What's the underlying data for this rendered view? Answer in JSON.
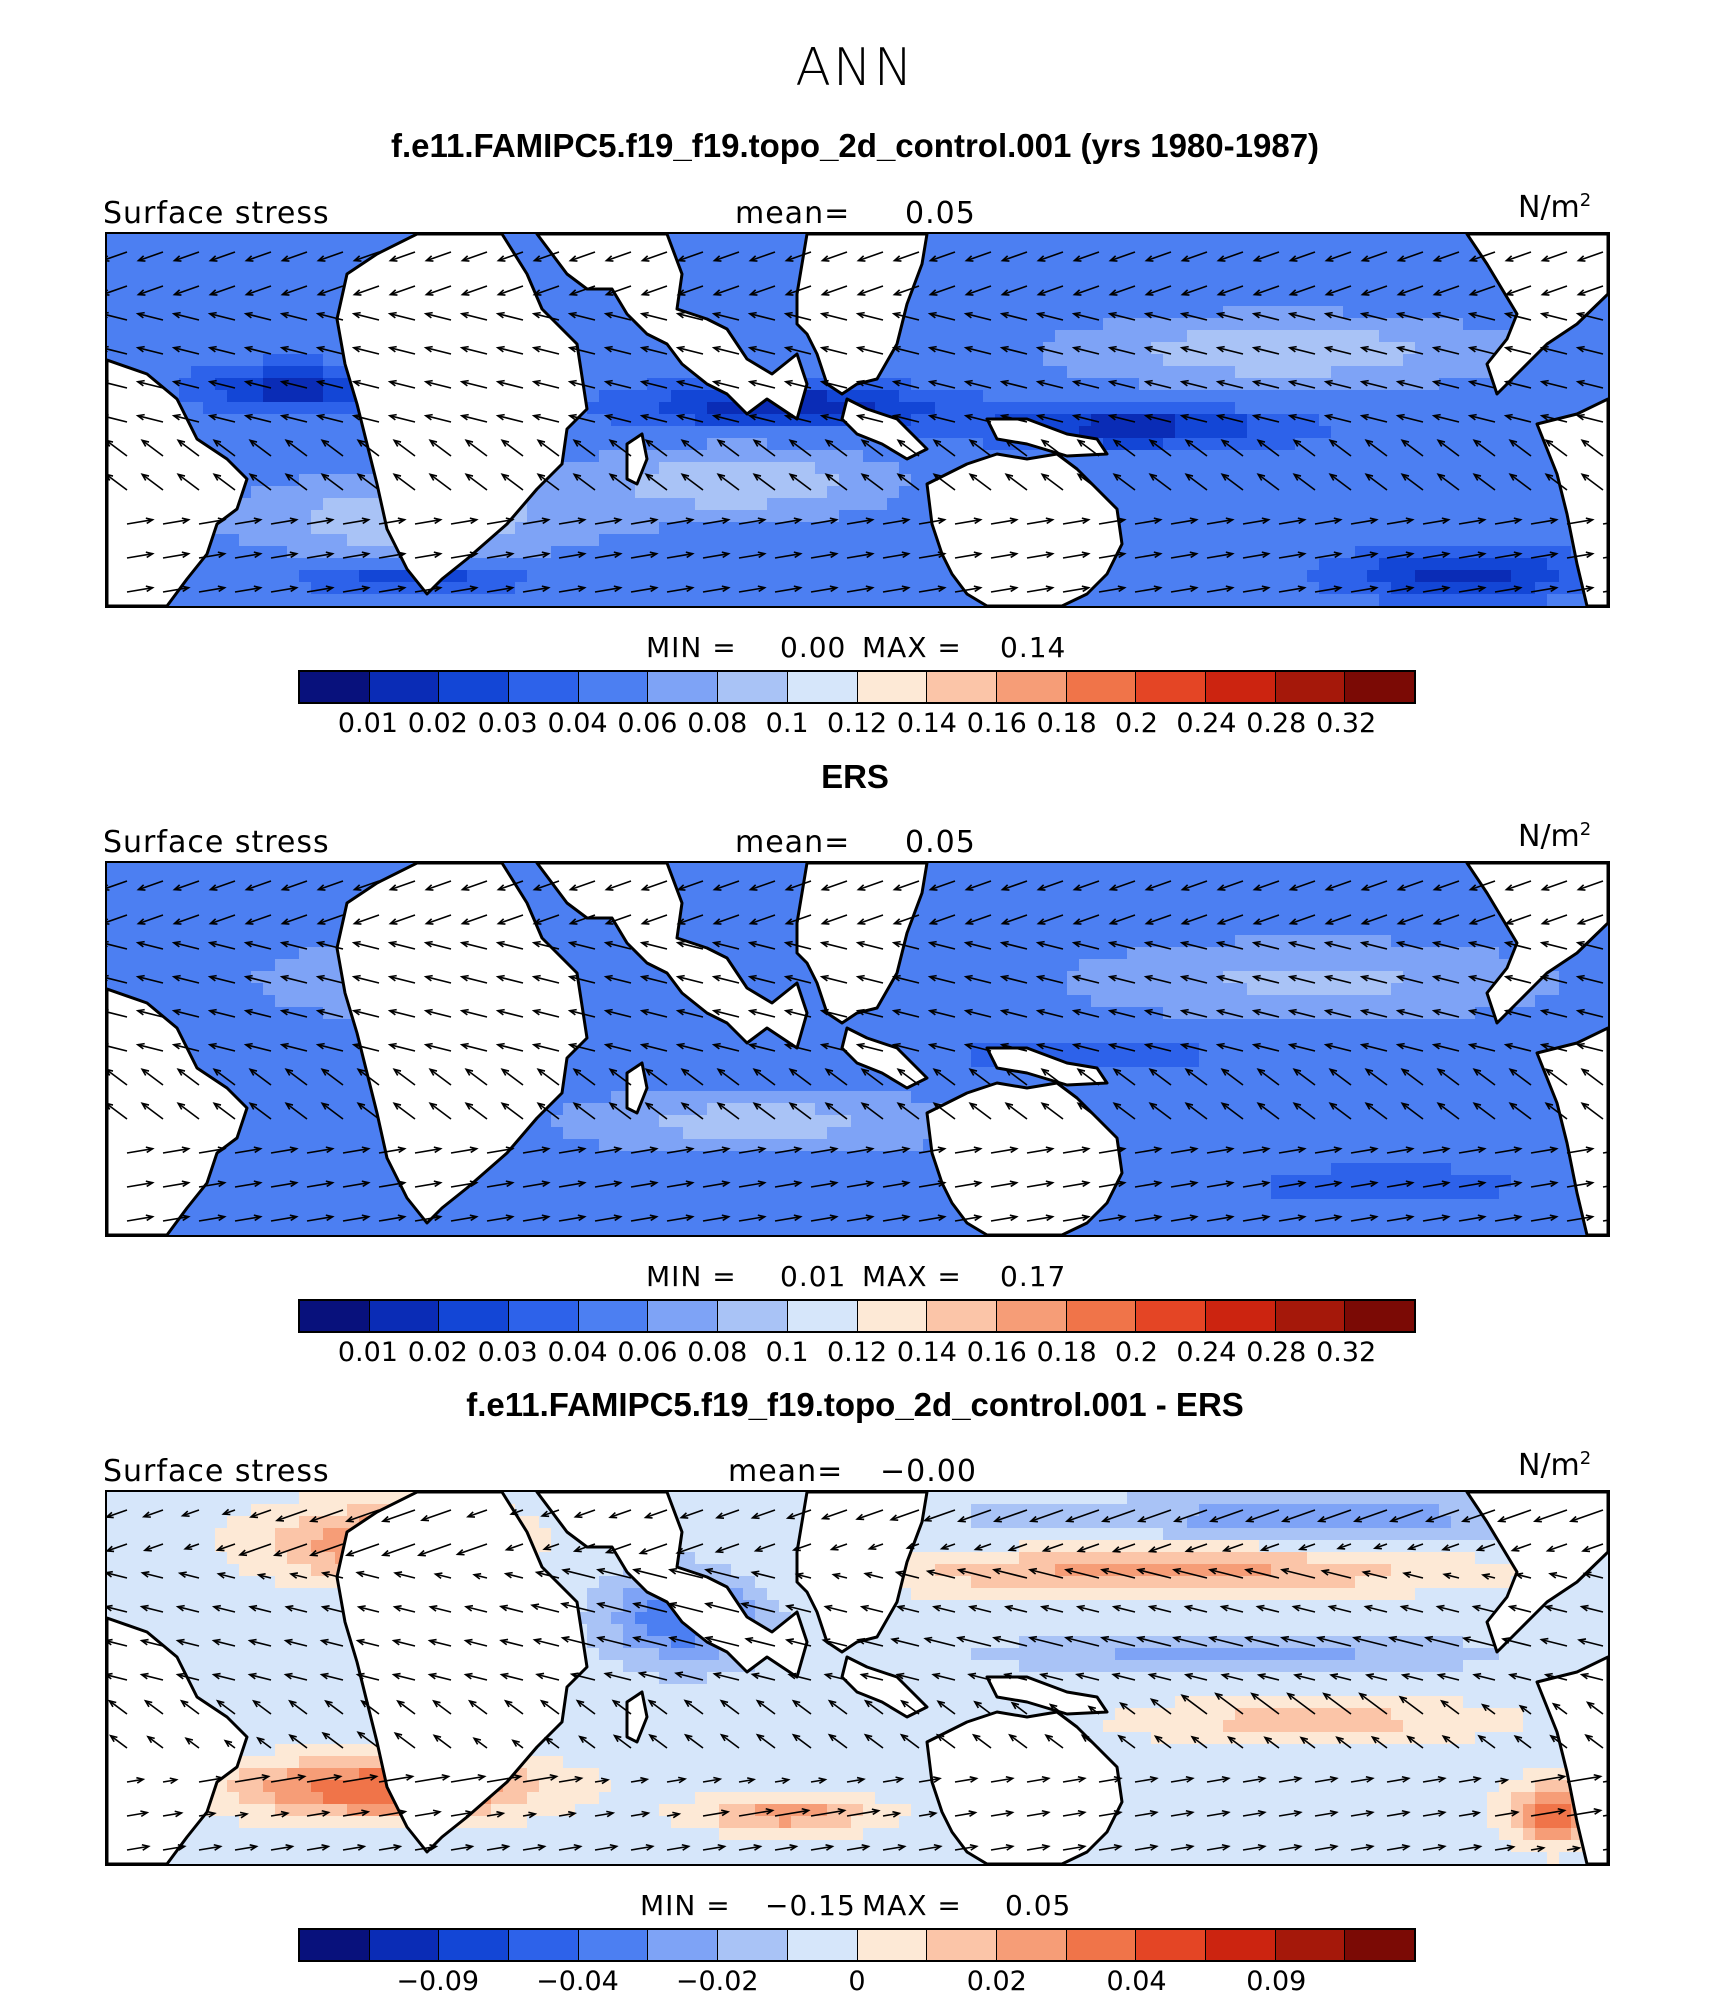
{
  "main_title": "ANN",
  "palette": [
    "#08117c",
    "#0a2cb6",
    "#1346d6",
    "#2d62ea",
    "#4c7ff2",
    "#7ea3f6",
    "#a9c3f6",
    "#d6e6fa",
    "#fde9d6",
    "#fbc5a8",
    "#f69d77",
    "#f07449",
    "#e44525",
    "#cc2410",
    "#a5180a",
    "#7b0a05"
  ],
  "land_color": "#ffffff",
  "panels": [
    {
      "title": "f.e11.FAMIPC5.f19_f19.topo_2d_control.001 (yrs 1980-1987)",
      "variable": "Surface stress",
      "mean_label": "mean=",
      "mean_value": "0.05",
      "units": "N/m",
      "units_exp": "2",
      "min_label": "MIN =",
      "min_value": "0.00",
      "max_label": "MAX =",
      "max_value": "0.14",
      "ticks": [
        "0.01",
        "0.02",
        "0.03",
        "0.04",
        "0.06",
        "0.08",
        "0.1",
        "0.12",
        "0.14",
        "0.16",
        "0.18",
        "0.2",
        "0.24",
        "0.28",
        "0.32"
      ],
      "tick_mode": "all",
      "field": "model"
    },
    {
      "title": "ERS",
      "variable": "Surface stress",
      "mean_label": "mean=",
      "mean_value": "0.05",
      "units": "N/m",
      "units_exp": "2",
      "min_label": "MIN =",
      "min_value": "0.01",
      "max_label": "MAX =",
      "max_value": "0.17",
      "ticks": [
        "0.01",
        "0.02",
        "0.03",
        "0.04",
        "0.06",
        "0.08",
        "0.1",
        "0.12",
        "0.14",
        "0.16",
        "0.18",
        "0.2",
        "0.24",
        "0.28",
        "0.32"
      ],
      "tick_mode": "all",
      "field": "obs"
    },
    {
      "title": "f.e11.FAMIPC5.f19_f19.topo_2d_control.001 - ERS",
      "variable": "Surface stress",
      "mean_label": "mean=",
      "mean_value": "−0.00",
      "units": "N/m",
      "units_exp": "2",
      "min_label": "MIN =",
      "min_value": "−0.15",
      "max_label": "MAX =",
      "max_value": "0.05",
      "ticks": [
        "−0.09",
        "−0.04",
        "−0.02",
        "0",
        "0.02",
        "0.04",
        "0.09"
      ],
      "tick_mode": "diff",
      "field": "diff"
    }
  ]
}
